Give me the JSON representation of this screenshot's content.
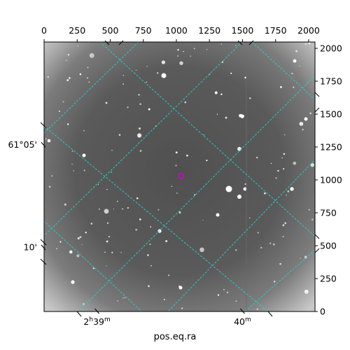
{
  "chart_data": {
    "type": "image",
    "title": "",
    "xlabel": "pos.eq.ra",
    "ylabel": "",
    "pixel_axes": {
      "x_range": [
        0,
        2048
      ],
      "y_range": [
        0,
        2048
      ],
      "x_ticks": [
        0,
        250,
        500,
        750,
        1000,
        1250,
        1500,
        1750,
        2000
      ],
      "y_ticks": [
        0,
        250,
        500,
        750,
        1000,
        1250,
        1500,
        1750,
        2000
      ]
    },
    "world_axes": {
      "ra_ticks": [
        {
          "label_main": "2",
          "label_sup1": "h",
          "label_mid": "39",
          "label_sup2": "m",
          "x": 400
        },
        {
          "label_main": "40",
          "label_sup1": "",
          "label_mid": "",
          "label_sup2": "m",
          "x": 1500
        }
      ],
      "dec_ticks": [
        {
          "label": "61°05'",
          "y": 1270
        },
        {
          "label": "10'",
          "y": 490
        }
      ]
    },
    "grid": true,
    "grid_color": "#22d3d3",
    "marker": {
      "x": 1035,
      "y": 1030,
      "color": "#d400d4"
    },
    "image_cmap": "gray"
  }
}
